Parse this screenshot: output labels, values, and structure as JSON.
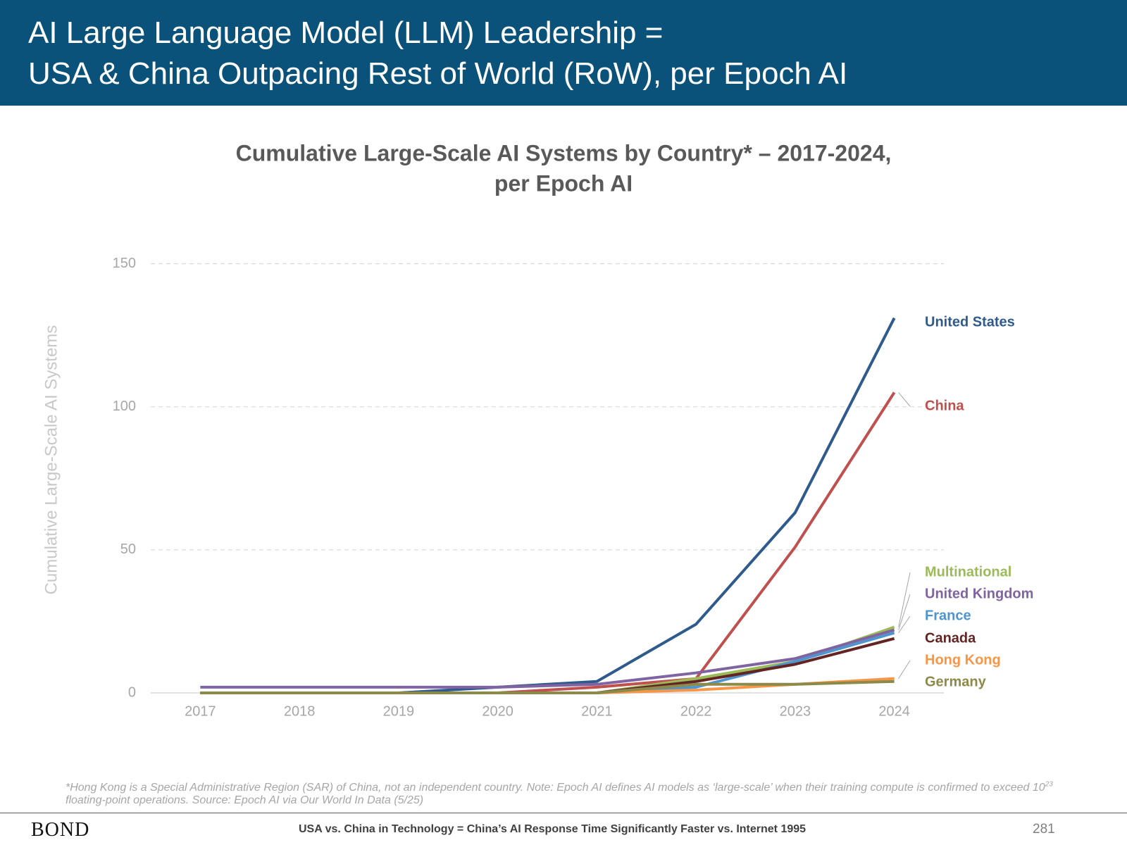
{
  "header": {
    "title_line1": "AI Large Language Model (LLM) Leadership =",
    "title_line2": "USA & China Outpacing Rest of World (RoW), per Epoch AI"
  },
  "chart_data": {
    "type": "line",
    "title_line1": "Cumulative Large-Scale AI Systems by Country* – 2017-2024,",
    "title_line2": "per Epoch AI",
    "y_label": "Cumulative Large-Scale AI Systems",
    "x": [
      2017,
      2018,
      2019,
      2020,
      2021,
      2022,
      2023,
      2024
    ],
    "xlim": [
      2016.5,
      2024.5
    ],
    "xticks": [
      2017,
      2018,
      2019,
      2020,
      2021,
      2022,
      2023,
      2024
    ],
    "ylim": [
      0,
      150
    ],
    "yticks": [
      0,
      50,
      100,
      150
    ],
    "grid": true,
    "series": [
      {
        "name": "United States",
        "color": "#2f5b8c",
        "values": [
          0,
          0,
          0,
          2,
          4,
          24,
          63,
          131
        ]
      },
      {
        "name": "China",
        "color": "#c0504d",
        "values": [
          0,
          0,
          0,
          0,
          2,
          5,
          51,
          105
        ]
      },
      {
        "name": "Multinational",
        "color": "#9bbb59",
        "values": [
          0,
          0,
          0,
          0,
          0,
          5,
          11,
          23
        ]
      },
      {
        "name": "United Kingdom",
        "color": "#8064a2",
        "values": [
          2,
          2,
          2,
          2,
          3,
          7,
          12,
          22
        ]
      },
      {
        "name": "France",
        "color": "#4f94cd",
        "values": [
          0,
          0,
          0,
          0,
          0,
          2,
          11,
          21
        ]
      },
      {
        "name": "Canada",
        "color": "#632523",
        "values": [
          0,
          0,
          0,
          0,
          0,
          4,
          10,
          19
        ]
      },
      {
        "name": "Hong Kong",
        "color": "#f79646",
        "values": [
          0,
          0,
          0,
          0,
          0,
          1,
          3,
          5
        ]
      },
      {
        "name": "Germany",
        "color": "#8c8a4b",
        "values": [
          0,
          0,
          0,
          0,
          0,
          3,
          3,
          4
        ]
      }
    ]
  },
  "footnote": {
    "text_before": "*Hong Kong is a Special Administrative Region (SAR) of China, not an independent country. Note: Epoch AI defines AI models as ‘large-scale’ when their training compute is confirmed to exceed 10",
    "superscript": "23",
    "text_after": " floating-point operations. Source: Epoch AI via Our World In Data (5/25)"
  },
  "footer": {
    "logo": "BOND",
    "text": "USA vs. China in Technology = China’s AI Response Time Significantly Faster vs. Internet 1995",
    "page_number": "281"
  }
}
